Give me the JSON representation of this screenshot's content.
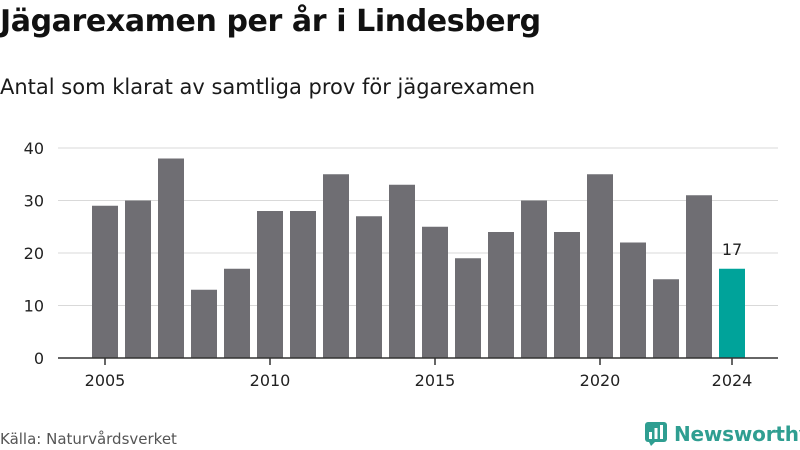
{
  "header": {
    "title": "Jägarexamen per år i Lindesberg",
    "subtitle": "Antal som klarat av samtliga prov för jägarexamen"
  },
  "footer": {
    "source": "Källa: Naturvårdsverket",
    "brand": "Newsworthy",
    "brand_icon": "bar-chart-logo-icon"
  },
  "colors": {
    "bar": "#6f6e73",
    "highlight": "#00a39a",
    "grid": "#d9d9d9",
    "axis": "#333333",
    "brand": "#2f9e91"
  },
  "chart_data": {
    "type": "bar",
    "x": [
      2005,
      2006,
      2007,
      2008,
      2009,
      2010,
      2011,
      2012,
      2013,
      2014,
      2015,
      2016,
      2017,
      2018,
      2019,
      2020,
      2021,
      2022,
      2023,
      2024
    ],
    "values": [
      29,
      30,
      38,
      13,
      17,
      28,
      28,
      35,
      27,
      33,
      25,
      19,
      24,
      30,
      24,
      35,
      22,
      15,
      31,
      17
    ],
    "title": "Jägarexamen per år i Lindesberg",
    "subtitle": "Antal som klarat av samtliga prov för jägarexamen",
    "xlabel": "",
    "ylabel": "",
    "xticks": [
      "2005",
      "2010",
      "2015",
      "2020",
      "2024"
    ],
    "yticks": [
      0,
      10,
      20,
      30,
      40
    ],
    "ylim": [
      0,
      40
    ],
    "grid": true,
    "highlight": {
      "x": 2024,
      "label": "17"
    }
  }
}
